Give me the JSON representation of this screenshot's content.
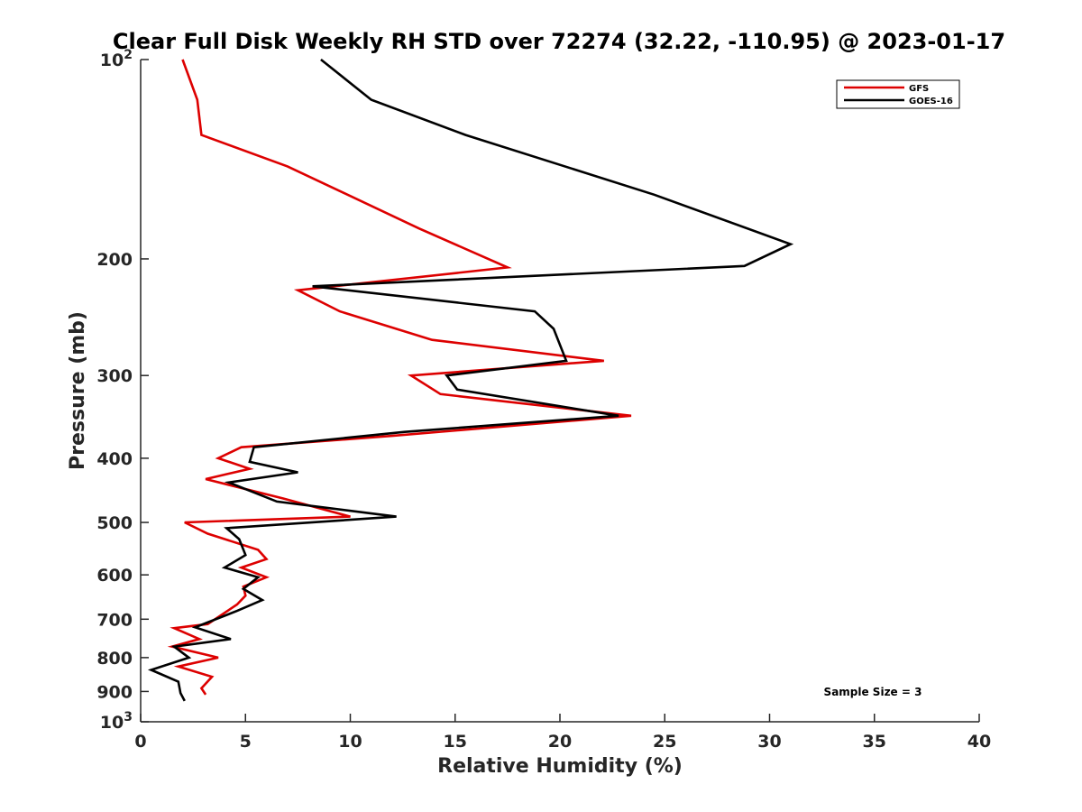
{
  "chart_data": {
    "type": "line",
    "title": "Clear Full Disk Weekly RH STD over 72274 (32.22, -110.95) @ 2023-01-17",
    "xlabel": "Relative Humidity (%)",
    "ylabel": "Pressure (mb)",
    "xlim": [
      0,
      40
    ],
    "ylim": [
      100,
      1000
    ],
    "y_scale": "log",
    "y_reversed": true,
    "x_ticks": [
      0,
      5,
      10,
      15,
      20,
      25,
      30,
      35,
      40
    ],
    "y_ticks": [
      {
        "value": 100,
        "base": "10",
        "exp": "2"
      },
      {
        "value": 200,
        "label": "200"
      },
      {
        "value": 300,
        "label": "300"
      },
      {
        "value": 400,
        "label": "400"
      },
      {
        "value": 500,
        "label": "500"
      },
      {
        "value": 600,
        "label": "600"
      },
      {
        "value": 700,
        "label": "700"
      },
      {
        "value": 800,
        "label": "800"
      },
      {
        "value": 900,
        "label": "900"
      },
      {
        "value": 1000,
        "base": "10",
        "exp": "3"
      }
    ],
    "legend_position": "top-right",
    "grid": false,
    "annotation": "Sample Size = 3",
    "series": [
      {
        "name": "GFS",
        "color": "#dd0000",
        "x": [
          2.0,
          2.7,
          2.9,
          7.0,
          13.3,
          17.5,
          7.5,
          9.5,
          13.9,
          22.1,
          12.9,
          14.3,
          23.4,
          12.0,
          4.8,
          3.7,
          5.2,
          3.1,
          6.8,
          10.0,
          2.1,
          3.2,
          5.6,
          6.0,
          4.8,
          6.0,
          4.9,
          5.0,
          4.6,
          3.2,
          1.6,
          2.8,
          1.5,
          3.7,
          1.8,
          3.4,
          2.9,
          3.1
        ],
        "y": [
          100,
          115,
          130,
          145,
          180,
          206,
          223,
          240,
          265,
          285,
          300,
          320,
          345,
          370,
          385,
          400,
          415,
          430,
          460,
          490,
          500,
          520,
          550,
          568,
          585,
          605,
          625,
          645,
          665,
          712,
          722,
          750,
          770,
          800,
          825,
          855,
          890,
          910
        ]
      },
      {
        "name": "GOES-16",
        "color": "#000000",
        "x": [
          8.6,
          11.0,
          15.5,
          24.5,
          31.0,
          28.8,
          8.2,
          18.8,
          19.7,
          20.3,
          14.6,
          15.1,
          22.8,
          12.6,
          5.4,
          5.2,
          7.5,
          4.2,
          6.5,
          12.2,
          4.1,
          4.7,
          5.0,
          4.0,
          5.6,
          4.9,
          5.8,
          4.6,
          2.6,
          4.3,
          1.6,
          2.3,
          0.5,
          1.8,
          1.9,
          2.1
        ],
        "y": [
          100,
          115,
          130,
          160,
          190,
          205,
          220,
          240,
          255,
          285,
          300,
          315,
          345,
          365,
          385,
          405,
          420,
          435,
          465,
          490,
          510,
          530,
          560,
          585,
          605,
          630,
          655,
          680,
          720,
          750,
          770,
          800,
          835,
          870,
          905,
          930
        ]
      }
    ]
  }
}
